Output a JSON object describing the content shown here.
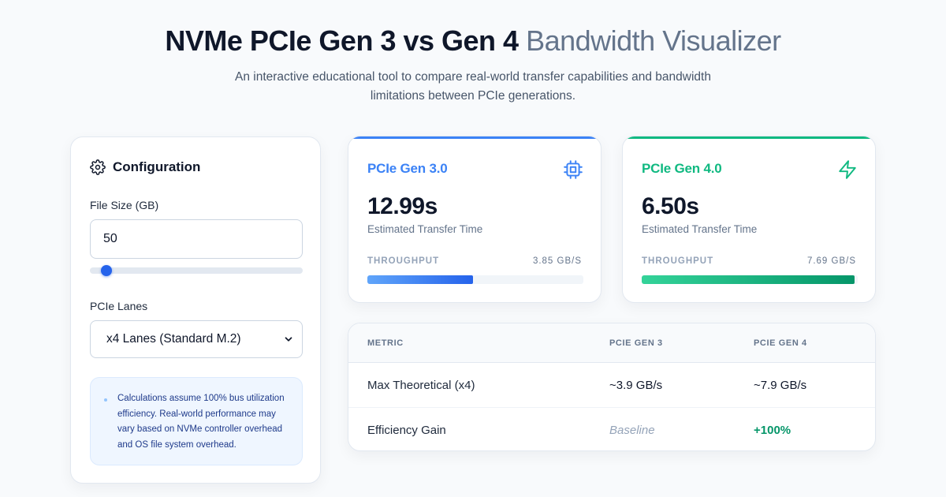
{
  "header": {
    "title_bold": "NVMe PCIe Gen 3 vs Gen 4",
    "title_light": "Bandwidth Visualizer",
    "subtitle": "An interactive educational tool to compare real-world transfer capabilities and bandwidth limitations between PCIe generations."
  },
  "config": {
    "title": "Configuration",
    "icon": "gear-icon",
    "file_size_label": "File Size (GB)",
    "file_size_value": "50",
    "file_size_slider_fraction": 0.05,
    "lanes_label": "PCIe Lanes",
    "lanes_selected": "x4 Lanes (Standard M.2)",
    "note": "Calculations assume 100% bus utilization efficiency. Real-world performance may vary based on NVMe controller overhead and OS file system overhead."
  },
  "gen3": {
    "name": "PCIe Gen 3.0",
    "icon": "cpu-chip-icon",
    "time": "12.99s",
    "time_label": "Estimated Transfer Time",
    "throughput_label": "THROUGHPUT",
    "throughput_value": "3.85 GB/S",
    "throughput_fraction": 0.49,
    "accent": "#3b82f6"
  },
  "gen4": {
    "name": "PCIe Gen 4.0",
    "icon": "lightning-bolt-icon",
    "time": "6.50s",
    "time_label": "Estimated Transfer Time",
    "throughput_label": "THROUGHPUT",
    "throughput_value": "7.69 GB/S",
    "throughput_fraction": 0.985,
    "accent": "#10b981"
  },
  "table": {
    "headers": [
      "METRIC",
      "PCIE GEN 3",
      "PCIE GEN 4"
    ],
    "rows": [
      [
        "Max Theoretical (x4)",
        "~3.9 GB/s",
        "~7.9 GB/s"
      ],
      [
        "Efficiency Gain",
        "Baseline",
        "+100%"
      ]
    ]
  }
}
